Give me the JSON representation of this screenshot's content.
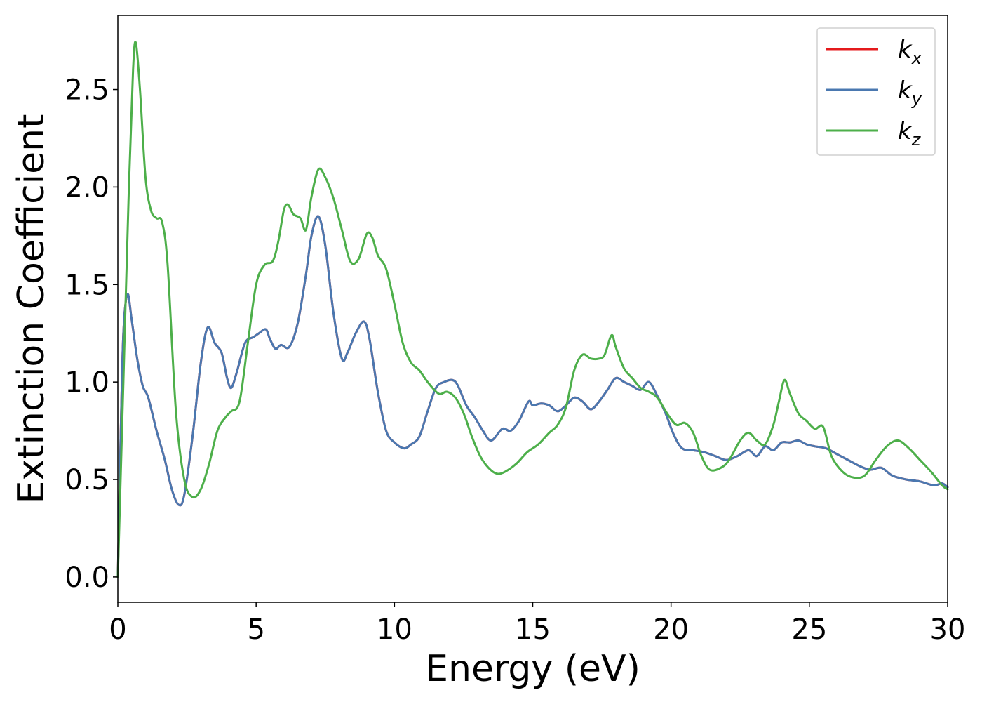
{
  "chart_data": {
    "type": "line",
    "xlabel": "Energy (eV)",
    "ylabel": "Extinction Coefficient",
    "xlim": [
      0,
      30
    ],
    "ylim": [
      -0.13,
      2.88
    ],
    "xticks": [
      "0",
      "5",
      "10",
      "15",
      "20",
      "25",
      "30"
    ],
    "yticks": [
      "0.0",
      "0.5",
      "1.0",
      "1.5",
      "2.0",
      "2.5"
    ],
    "legend_position": "top-right",
    "grid": false,
    "series": [
      {
        "name": "k_x",
        "label_main": "k",
        "label_sub": "x",
        "color": "#e41a1c",
        "x": [
          0,
          0.1,
          0.2,
          0.35,
          0.5,
          0.7,
          0.9,
          1.1,
          1.4,
          1.7,
          1.95,
          2.2,
          2.4,
          2.7,
          3.0,
          3.25,
          3.5,
          3.75,
          3.95,
          4.1,
          4.3,
          4.6,
          4.9,
          5.1,
          5.35,
          5.5,
          5.7,
          5.9,
          6.2,
          6.5,
          6.8,
          7.0,
          7.25,
          7.5,
          7.8,
          8.1,
          8.3,
          8.6,
          8.9,
          9.1,
          9.4,
          9.7,
          10.0,
          10.35,
          10.6,
          10.9,
          11.2,
          11.5,
          11.8,
          12.1,
          12.3,
          12.6,
          12.9,
          13.2,
          13.5,
          13.9,
          14.2,
          14.5,
          14.85,
          15.0,
          15.3,
          15.6,
          15.9,
          16.2,
          16.5,
          16.8,
          17.1,
          17.4,
          17.7,
          18.0,
          18.3,
          18.6,
          18.9,
          19.2,
          19.5,
          19.8,
          20.1,
          20.4,
          20.8,
          21.2,
          21.6,
          22.0,
          22.4,
          22.8,
          23.1,
          23.4,
          23.7,
          24.0,
          24.3,
          24.6,
          24.9,
          25.2,
          25.6,
          26.0,
          26.4,
          26.8,
          27.2,
          27.6,
          28.0,
          28.5,
          29.0,
          29.5,
          29.8,
          30.0
        ],
        "y": [
          0,
          0.7,
          1.25,
          1.45,
          1.32,
          1.12,
          0.98,
          0.92,
          0.75,
          0.6,
          0.45,
          0.37,
          0.42,
          0.72,
          1.1,
          1.28,
          1.2,
          1.15,
          1.02,
          0.97,
          1.05,
          1.2,
          1.23,
          1.25,
          1.27,
          1.22,
          1.17,
          1.19,
          1.18,
          1.3,
          1.55,
          1.75,
          1.85,
          1.7,
          1.35,
          1.12,
          1.15,
          1.25,
          1.31,
          1.22,
          0.95,
          0.75,
          0.69,
          0.66,
          0.68,
          0.72,
          0.85,
          0.97,
          1.0,
          1.01,
          0.98,
          0.88,
          0.82,
          0.75,
          0.7,
          0.76,
          0.75,
          0.8,
          0.9,
          0.88,
          0.89,
          0.88,
          0.85,
          0.88,
          0.92,
          0.9,
          0.86,
          0.9,
          0.96,
          1.02,
          1.0,
          0.98,
          0.96,
          1.0,
          0.93,
          0.84,
          0.73,
          0.66,
          0.65,
          0.64,
          0.62,
          0.6,
          0.62,
          0.65,
          0.62,
          0.67,
          0.65,
          0.69,
          0.69,
          0.7,
          0.68,
          0.67,
          0.66,
          0.63,
          0.6,
          0.57,
          0.55,
          0.56,
          0.52,
          0.5,
          0.49,
          0.47,
          0.48,
          0.46
        ]
      },
      {
        "name": "k_y",
        "label_main": "k",
        "label_sub": "y",
        "color": "#4a78b0",
        "x": [
          0,
          0.1,
          0.2,
          0.35,
          0.5,
          0.7,
          0.9,
          1.1,
          1.4,
          1.7,
          1.95,
          2.2,
          2.4,
          2.7,
          3.0,
          3.25,
          3.5,
          3.75,
          3.95,
          4.1,
          4.3,
          4.6,
          4.9,
          5.1,
          5.35,
          5.5,
          5.7,
          5.9,
          6.2,
          6.5,
          6.8,
          7.0,
          7.25,
          7.5,
          7.8,
          8.1,
          8.3,
          8.6,
          8.9,
          9.1,
          9.4,
          9.7,
          10.0,
          10.35,
          10.6,
          10.9,
          11.2,
          11.5,
          11.8,
          12.1,
          12.3,
          12.6,
          12.9,
          13.2,
          13.5,
          13.9,
          14.2,
          14.5,
          14.85,
          15.0,
          15.3,
          15.6,
          15.9,
          16.2,
          16.5,
          16.8,
          17.1,
          17.4,
          17.7,
          18.0,
          18.3,
          18.6,
          18.9,
          19.2,
          19.5,
          19.8,
          20.1,
          20.4,
          20.8,
          21.2,
          21.6,
          22.0,
          22.4,
          22.8,
          23.1,
          23.4,
          23.7,
          24.0,
          24.3,
          24.6,
          24.9,
          25.2,
          25.6,
          26.0,
          26.4,
          26.8,
          27.2,
          27.6,
          28.0,
          28.5,
          29.0,
          29.5,
          29.8,
          30.0
        ],
        "y": [
          0,
          0.7,
          1.25,
          1.45,
          1.32,
          1.12,
          0.98,
          0.92,
          0.75,
          0.6,
          0.45,
          0.37,
          0.42,
          0.72,
          1.1,
          1.28,
          1.2,
          1.15,
          1.02,
          0.97,
          1.05,
          1.2,
          1.23,
          1.25,
          1.27,
          1.22,
          1.17,
          1.19,
          1.18,
          1.3,
          1.55,
          1.75,
          1.85,
          1.7,
          1.35,
          1.12,
          1.15,
          1.25,
          1.31,
          1.22,
          0.95,
          0.75,
          0.69,
          0.66,
          0.68,
          0.72,
          0.85,
          0.97,
          1.0,
          1.01,
          0.98,
          0.88,
          0.82,
          0.75,
          0.7,
          0.76,
          0.75,
          0.8,
          0.9,
          0.88,
          0.89,
          0.88,
          0.85,
          0.88,
          0.92,
          0.9,
          0.86,
          0.9,
          0.96,
          1.02,
          1.0,
          0.98,
          0.96,
          1.0,
          0.93,
          0.84,
          0.73,
          0.66,
          0.65,
          0.64,
          0.62,
          0.6,
          0.62,
          0.65,
          0.62,
          0.67,
          0.65,
          0.69,
          0.69,
          0.7,
          0.68,
          0.67,
          0.66,
          0.63,
          0.6,
          0.57,
          0.55,
          0.56,
          0.52,
          0.5,
          0.49,
          0.47,
          0.48,
          0.46
        ]
      },
      {
        "name": "k_z",
        "label_main": "k",
        "label_sub": "z",
        "color": "#4daf4a",
        "x": [
          0,
          0.2,
          0.4,
          0.55,
          0.65,
          0.8,
          1.0,
          1.2,
          1.4,
          1.6,
          1.8,
          2.1,
          2.4,
          2.7,
          3.0,
          3.3,
          3.6,
          3.9,
          4.1,
          4.4,
          4.7,
          5.0,
          5.3,
          5.6,
          5.8,
          6.0,
          6.15,
          6.35,
          6.6,
          6.8,
          7.0,
          7.25,
          7.5,
          7.8,
          8.1,
          8.4,
          8.7,
          9.0,
          9.2,
          9.4,
          9.7,
          10.0,
          10.3,
          10.6,
          10.9,
          11.2,
          11.6,
          11.9,
          12.2,
          12.5,
          12.8,
          13.1,
          13.4,
          13.7,
          14.0,
          14.4,
          14.8,
          15.2,
          15.6,
          15.9,
          16.2,
          16.5,
          16.8,
          17.1,
          17.4,
          17.6,
          17.85,
          18.0,
          18.3,
          18.6,
          18.9,
          19.2,
          19.5,
          19.9,
          20.2,
          20.5,
          20.8,
          21.1,
          21.4,
          21.8,
          22.1,
          22.5,
          22.8,
          23.1,
          23.4,
          23.7,
          23.9,
          24.1,
          24.3,
          24.6,
          24.9,
          25.2,
          25.5,
          25.8,
          26.2,
          26.6,
          27.0,
          27.4,
          27.8,
          28.2,
          28.6,
          29.0,
          29.4,
          29.8,
          30.0
        ],
        "y": [
          0,
          1.0,
          2.0,
          2.6,
          2.74,
          2.5,
          2.05,
          1.88,
          1.84,
          1.82,
          1.6,
          0.85,
          0.5,
          0.41,
          0.45,
          0.58,
          0.75,
          0.82,
          0.85,
          0.9,
          1.2,
          1.5,
          1.6,
          1.62,
          1.72,
          1.88,
          1.91,
          1.86,
          1.84,
          1.78,
          1.95,
          2.09,
          2.05,
          1.94,
          1.78,
          1.62,
          1.63,
          1.76,
          1.74,
          1.65,
          1.58,
          1.4,
          1.2,
          1.1,
          1.06,
          1.0,
          0.94,
          0.95,
          0.92,
          0.84,
          0.72,
          0.62,
          0.56,
          0.53,
          0.54,
          0.58,
          0.64,
          0.68,
          0.74,
          0.78,
          0.87,
          1.06,
          1.14,
          1.12,
          1.12,
          1.14,
          1.24,
          1.18,
          1.07,
          1.02,
          0.97,
          0.95,
          0.92,
          0.83,
          0.78,
          0.79,
          0.74,
          0.62,
          0.55,
          0.56,
          0.6,
          0.7,
          0.74,
          0.7,
          0.68,
          0.78,
          0.9,
          1.01,
          0.94,
          0.84,
          0.8,
          0.76,
          0.77,
          0.62,
          0.54,
          0.51,
          0.52,
          0.6,
          0.67,
          0.7,
          0.66,
          0.6,
          0.54,
          0.47,
          0.45
        ]
      }
    ]
  }
}
